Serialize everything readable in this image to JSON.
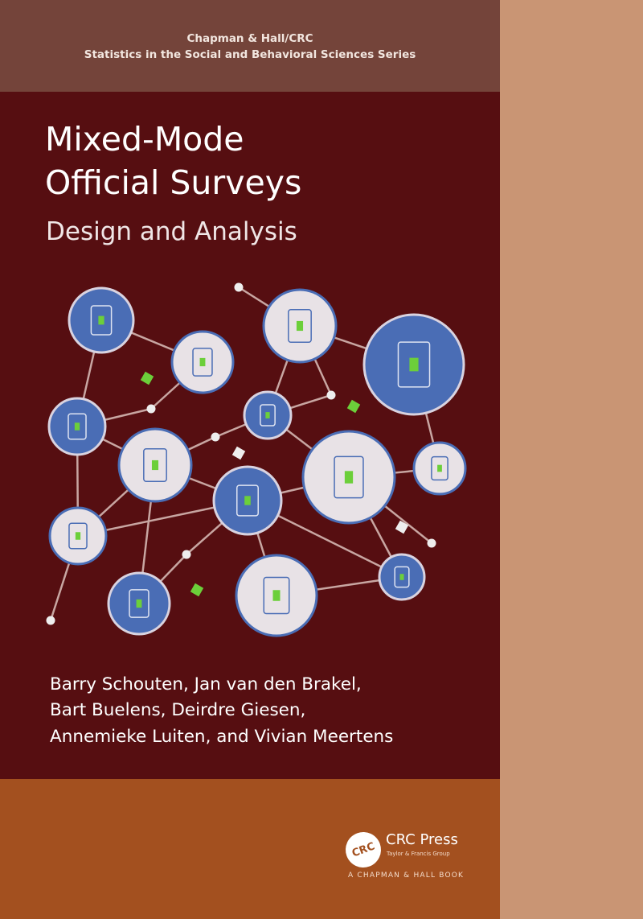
{
  "series": {
    "line1": "Chapman & Hall/CRC",
    "line2": "Statistics in the Social and Behavioral Sciences Series"
  },
  "title": {
    "line1": "Mixed-Mode",
    "line2": "Official Surveys"
  },
  "subtitle": "Design and Analysis",
  "authors": [
    "Barry Schouten, Jan van den Brakel,",
    "Bart Buelens, Deirdre Giesen,",
    "Annemieke Luiten, and Vivian Meertens"
  ],
  "publisher": {
    "logo_text": "CRC",
    "name": "CRC Press",
    "group": "Taylor & Francis Group",
    "imprint": "A CHAPMAN & HALL BOOK"
  },
  "colors": {
    "series_band": "#74443a",
    "main": "#560e11",
    "bottom": "#a3501f",
    "spine": "#c99574",
    "node_blue": "#4a6db5",
    "node_light": "#e8e2e6",
    "accent_green": "#6ccf3a"
  },
  "illustration_icons": [
    "document-icon",
    "head-phone-icon",
    "chat-icon",
    "meeting-icon",
    "mobile-phone-icon",
    "search-icon",
    "bar-chart-icon",
    "form-icon",
    "at-sign-icon",
    "monitor-icon",
    "speech-bubbles-icon",
    "tablet-icon",
    "globe-icon",
    "wifi-icon"
  ]
}
